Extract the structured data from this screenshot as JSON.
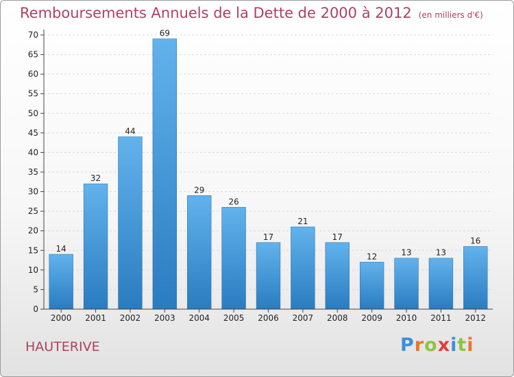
{
  "title": "Remboursements Annuels de la Dette de 2000 à 2012",
  "unit": "(en milliers d'€)",
  "location": "HAUTERIVE",
  "logo": {
    "text": "Proxiti",
    "letters": [
      {
        "ch": "P",
        "color": "#3d8fd6"
      },
      {
        "ch": "r",
        "color": "#e8762b"
      },
      {
        "ch": "o",
        "color": "#8cc63f"
      },
      {
        "ch": "x",
        "color": "#e63b3b"
      },
      {
        "ch": "i",
        "color": "#3d8fd6"
      },
      {
        "ch": "t",
        "color": "#8cc63f"
      },
      {
        "ch": "i",
        "color": "#e8762b"
      }
    ]
  },
  "colors": {
    "bar_top": "#62b2ec",
    "bar_bottom": "#2a7cc0",
    "title": "#b0405f",
    "grid": "#d9d9d9"
  },
  "chart_data": {
    "type": "bar",
    "categories": [
      "2000",
      "2001",
      "2002",
      "2003",
      "2004",
      "2005",
      "2006",
      "2007",
      "2008",
      "2009",
      "2010",
      "2011",
      "2012"
    ],
    "values": [
      14,
      32,
      44,
      69,
      29,
      26,
      17,
      21,
      17,
      12,
      13,
      13,
      16
    ],
    "ylim": [
      0,
      70
    ],
    "yticks": [
      0,
      5,
      10,
      15,
      20,
      25,
      30,
      35,
      40,
      45,
      50,
      55,
      60,
      65,
      70
    ],
    "grid": "horizontal dashed",
    "xlabel": "",
    "ylabel": ""
  }
}
